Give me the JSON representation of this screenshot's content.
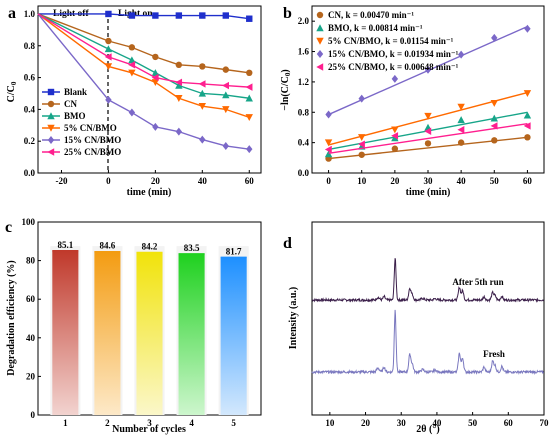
{
  "chart_data": [
    {
      "panel": "a",
      "type": "line",
      "xlabel": "time (min)",
      "ylabel": "C/C0",
      "xlim": [
        -30,
        65
      ],
      "ylim": [
        0.0,
        1.05
      ],
      "xticks": [
        "-20",
        "0",
        "20",
        "40",
        "60"
      ],
      "yticks": [
        "0.0",
        "0.2",
        "0.4",
        "0.6",
        "0.8",
        "1.0"
      ],
      "annotations": [
        "Light off",
        "Light on"
      ],
      "legend_position": "bottom-left",
      "x": [
        -30,
        0,
        10,
        20,
        30,
        40,
        50,
        60
      ],
      "series": [
        {
          "name": "Blank",
          "color": "#1f2fcc",
          "marker": "square",
          "values": [
            1.0,
            1.0,
            0.99,
            0.99,
            0.99,
            0.99,
            0.99,
            0.97
          ]
        },
        {
          "name": "CN",
          "color": "#b5651d",
          "marker": "circle",
          "values": [
            1.0,
            0.83,
            0.79,
            0.73,
            0.68,
            0.67,
            0.65,
            0.63
          ]
        },
        {
          "name": "BMO",
          "color": "#17a589",
          "marker": "triangle",
          "values": [
            1.0,
            0.78,
            0.71,
            0.63,
            0.55,
            0.5,
            0.49,
            0.47
          ]
        },
        {
          "name": "5% CN/BMO",
          "color": "#ff6a00",
          "marker": "triangle-down",
          "values": [
            1.0,
            0.67,
            0.63,
            0.57,
            0.47,
            0.42,
            0.4,
            0.35
          ]
        },
        {
          "name": "15% CN/BMO",
          "color": "#7b68c8",
          "marker": "diamond",
          "values": [
            1.0,
            0.46,
            0.38,
            0.29,
            0.26,
            0.21,
            0.17,
            0.15
          ]
        },
        {
          "name": "25% CN/BMO",
          "color": "#ff1f8f",
          "marker": "triangle-left",
          "values": [
            1.0,
            0.73,
            0.68,
            0.6,
            0.57,
            0.56,
            0.55,
            0.54
          ]
        }
      ]
    },
    {
      "panel": "b",
      "type": "scatter",
      "xlabel": "time (min)",
      "ylabel": "-ln(C/C0)",
      "xlim": [
        -5,
        65
      ],
      "ylim": [
        0.0,
        2.2
      ],
      "xticks": [
        "0",
        "10",
        "20",
        "30",
        "40",
        "50",
        "60"
      ],
      "yticks": [
        "0.0",
        "0.4",
        "0.8",
        "1.2",
        "1.6",
        "2.0"
      ],
      "legend_position": "top-left",
      "x": [
        0,
        10,
        20,
        30,
        40,
        50,
        60
      ],
      "series": [
        {
          "name": "CN, k = 0.00470 min⁻¹",
          "color": "#b5651d",
          "marker": "circle",
          "values": [
            0.19,
            0.24,
            0.32,
            0.39,
            0.4,
            0.43,
            0.47
          ],
          "fit": [
            0.19,
            0.47
          ]
        },
        {
          "name": "BMO, k = 0.00814 min⁻¹",
          "color": "#17a589",
          "marker": "triangle",
          "values": [
            0.25,
            0.35,
            0.46,
            0.6,
            0.7,
            0.72,
            0.76
          ],
          "fit": [
            0.31,
            0.8
          ]
        },
        {
          "name": "5% CN/BMO, k = 0.01154 min⁻¹",
          "color": "#ff6a00",
          "marker": "triangle-down",
          "values": [
            0.4,
            0.47,
            0.57,
            0.75,
            0.87,
            0.92,
            1.05
          ],
          "fit": [
            0.37,
            1.06
          ]
        },
        {
          "name": "15% CN/BMO, k = 0.01934 min⁻¹",
          "color": "#7b68c8",
          "marker": "diamond",
          "values": [
            0.77,
            0.98,
            1.24,
            1.36,
            1.56,
            1.78,
            1.9
          ],
          "fit": [
            0.77,
            1.93
          ]
        },
        {
          "name": "25% CN/BMO, k = 0.00648 min⁻¹",
          "color": "#ff1f8f",
          "marker": "triangle-left",
          "values": [
            0.31,
            0.38,
            0.49,
            0.55,
            0.57,
            0.62,
            0.62
          ],
          "fit": [
            0.26,
            0.65
          ]
        }
      ]
    },
    {
      "panel": "c",
      "type": "bar",
      "xlabel": "Number of cycles",
      "ylabel": "Degradation efficiency (%)",
      "ylim": [
        0,
        100
      ],
      "yticks": [
        "0",
        "20",
        "40",
        "60",
        "80",
        "100"
      ],
      "categories": [
        "1",
        "2",
        "3",
        "4",
        "5"
      ],
      "values": [
        85.1,
        84.6,
        84.2,
        83.5,
        81.7
      ],
      "value_labels": [
        "85.1",
        "84.6",
        "84.2",
        "83.5",
        "81.7"
      ],
      "colors": [
        [
          "#c0392b",
          "#f2d3cf"
        ],
        [
          "#f39c12",
          "#fde9c8"
        ],
        [
          "#f1e30b",
          "#fbf7c9"
        ],
        [
          "#1fd11f",
          "#cdf6cd"
        ],
        [
          "#1e90ff",
          "#d3e8fd"
        ]
      ]
    },
    {
      "panel": "d",
      "type": "line",
      "xlabel": "2θ (°)",
      "ylabel": "Intensity (a.u.)",
      "xlim": [
        5,
        70
      ],
      "xticks": [
        "10",
        "20",
        "30",
        "40",
        "50",
        "60",
        "70"
      ],
      "series": [
        {
          "name": "After 5th run",
          "color": "#3b1f4a"
        },
        {
          "name": "Fresh",
          "color": "#7a78bf"
        }
      ],
      "peaks_2theta": [
        28.3,
        32.4,
        46.3,
        47.2,
        55.6,
        58.2
      ]
    }
  ],
  "panel_labels": [
    "a",
    "b",
    "c",
    "d"
  ]
}
